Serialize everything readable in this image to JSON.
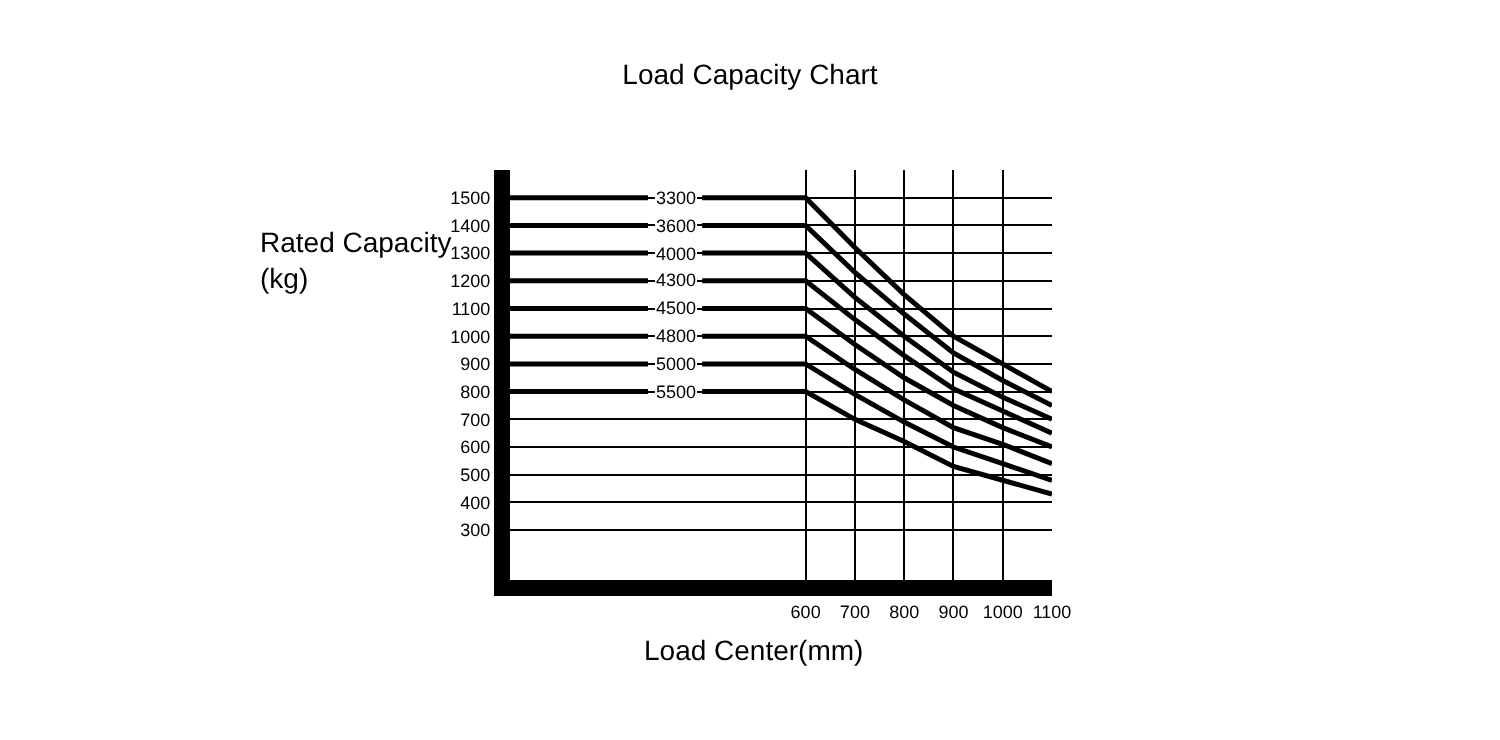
{
  "chart_data": {
    "type": "line",
    "title": "Load Capacity Chart",
    "xlabel": "Load Center(mm)",
    "ylabel": "Rated Capacity\n(kg)",
    "x": [
      0,
      280,
      335,
      390,
      600,
      700,
      800,
      900,
      1000,
      1100
    ],
    "series": [
      {
        "name": "3300",
        "color": "#000000",
        "values": [
          1500,
          1500,
          null,
          1500,
          1500,
          1320,
          1150,
          1000,
          900,
          800
        ]
      },
      {
        "name": "3600",
        "color": "#000000",
        "values": [
          1400,
          1400,
          null,
          1400,
          1400,
          1230,
          1080,
          940,
          840,
          750
        ]
      },
      {
        "name": "4000",
        "color": "#000000",
        "values": [
          1300,
          1300,
          null,
          1300,
          1300,
          1140,
          1000,
          870,
          780,
          700
        ]
      },
      {
        "name": "4300",
        "color": "#000000",
        "values": [
          1200,
          1200,
          null,
          1200,
          1200,
          1060,
          930,
          810,
          730,
          650
        ]
      },
      {
        "name": "4500",
        "color": "#000000",
        "values": [
          1100,
          1100,
          null,
          1100,
          1100,
          970,
          850,
          750,
          670,
          600
        ]
      },
      {
        "name": "4800",
        "color": "#000000",
        "values": [
          1000,
          1000,
          null,
          1000,
          1000,
          880,
          770,
          670,
          610,
          540
        ]
      },
      {
        "name": "5000",
        "color": "#000000",
        "values": [
          900,
          900,
          null,
          900,
          900,
          790,
          690,
          600,
          540,
          480
        ]
      },
      {
        "name": "5500",
        "color": "#000000",
        "values": [
          800,
          800,
          null,
          800,
          800,
          700,
          620,
          530,
          480,
          430
        ]
      }
    ],
    "xlim": [
      0,
      1100
    ],
    "xticks": [
      600,
      700,
      800,
      900,
      1000,
      1100
    ],
    "ylim": [
      120,
      1600
    ],
    "yticks": [
      300,
      400,
      500,
      600,
      700,
      800,
      900,
      1000,
      1100,
      1200,
      1300,
      1400,
      1500
    ],
    "grid": true,
    "legend": false,
    "marker": "none",
    "line_style": "solid"
  }
}
